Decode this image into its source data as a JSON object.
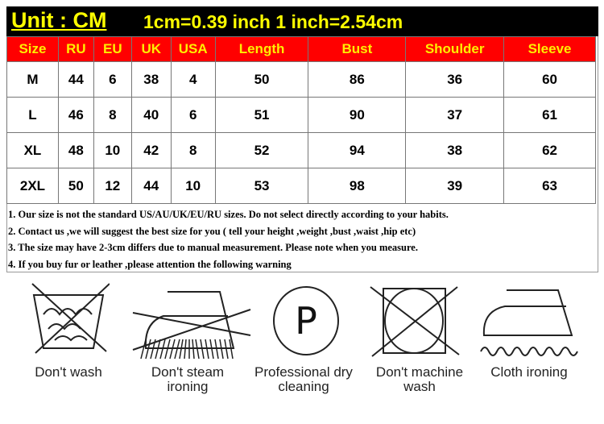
{
  "title": {
    "unit": "Unit : CM",
    "conversion": "1cm=0.39 inch  1 inch=2.54cm"
  },
  "table": {
    "headers": [
      "Size",
      "RU",
      "EU",
      "UK",
      "USA",
      "Length",
      "Bust",
      "Shoulder",
      "Sleeve"
    ],
    "rows": [
      [
        "M",
        "44",
        "6",
        "38",
        "4",
        "50",
        "86",
        "36",
        "60"
      ],
      [
        "L",
        "46",
        "8",
        "40",
        "6",
        "51",
        "90",
        "37",
        "61"
      ],
      [
        "XL",
        "48",
        "10",
        "42",
        "8",
        "52",
        "94",
        "38",
        "62"
      ],
      [
        "2XL",
        "50",
        "12",
        "44",
        "10",
        "53",
        "98",
        "39",
        "63"
      ]
    ]
  },
  "notes": [
    "1. Our size is not the standard US/AU/UK/EU/RU sizes. Do not select directly according to your habits.",
    "2. Contact us ,we will suggest the best size for you ( tell your height ,weight ,bust ,waist ,hip etc)",
    "3. The size may have 2-3cm differs due to manual measurement. Please note when you measure.",
    "4. If you buy fur or leather ,please attention the following warning"
  ],
  "care": [
    {
      "icon": "no-wash-icon",
      "label1": "Don't wash",
      "label2": ""
    },
    {
      "icon": "no-steam-iron-icon",
      "label1": "Don't steam",
      "label2": "ironing"
    },
    {
      "icon": "dry-clean-p-icon",
      "label1": "Professional dry",
      "label2": "cleaning",
      "letter": "P"
    },
    {
      "icon": "no-machine-wash-icon",
      "label1": "Don't machine",
      "label2": "wash"
    },
    {
      "icon": "cloth-iron-icon",
      "label1": "Cloth ironing",
      "label2": ""
    }
  ],
  "colors": {
    "title_bg": "#000000",
    "title_text": "#ffff00",
    "header_bg": "#ff0000",
    "header_text": "#ffee00"
  }
}
